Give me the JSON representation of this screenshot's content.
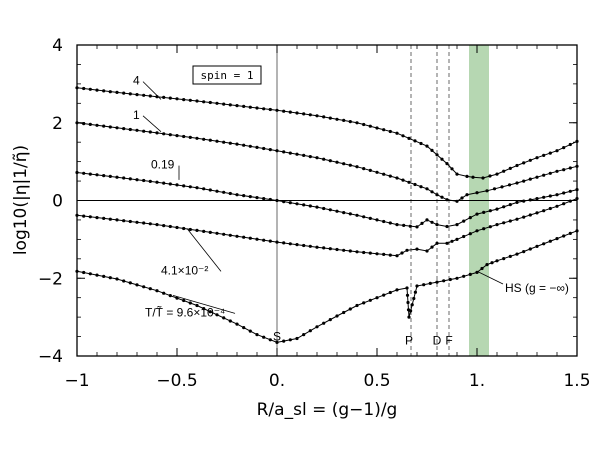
{
  "chart_data": {
    "type": "line",
    "xlabel": "R/a_sl = (g−1)/g",
    "ylabel": "log10(|η|1/η̃)",
    "xlim": [
      -1,
      1.5
    ],
    "ylim": [
      -4,
      4
    ],
    "x_ticks": [
      "−1",
      "−0.5",
      "0.",
      "0.5",
      "1.",
      "1.5"
    ],
    "y_ticks": [
      "4",
      "2",
      "0",
      "−2",
      "−4"
    ],
    "legend_box": "spin = 1",
    "series": [
      {
        "name": "4",
        "points": [
          [
            -1,
            2.9
          ],
          [
            -0.8,
            2.78
          ],
          [
            -0.6,
            2.67
          ],
          [
            -0.4,
            2.56
          ],
          [
            -0.2,
            2.44
          ],
          [
            0,
            2.32
          ],
          [
            0.2,
            2.18
          ],
          [
            0.4,
            2.0
          ],
          [
            0.6,
            1.73
          ],
          [
            0.75,
            1.4
          ],
          [
            0.85,
            0.95
          ],
          [
            0.9,
            0.68
          ],
          [
            0.95,
            0.62
          ],
          [
            0.98,
            0.6
          ],
          [
            1.03,
            0.58
          ],
          [
            1.1,
            0.68
          ],
          [
            1.2,
            0.9
          ],
          [
            1.3,
            1.1
          ],
          [
            1.4,
            1.28
          ],
          [
            1.5,
            1.52
          ]
        ]
      },
      {
        "name": "1",
        "points": [
          [
            -1,
            2.0
          ],
          [
            -0.8,
            1.87
          ],
          [
            -0.6,
            1.74
          ],
          [
            -0.4,
            1.6
          ],
          [
            -0.2,
            1.45
          ],
          [
            0,
            1.28
          ],
          [
            0.2,
            1.1
          ],
          [
            0.4,
            0.87
          ],
          [
            0.6,
            0.58
          ],
          [
            0.75,
            0.3
          ],
          [
            0.8,
            0.15
          ],
          [
            0.85,
            0.02
          ],
          [
            0.9,
            -0.02
          ],
          [
            0.95,
            0.15
          ],
          [
            1.0,
            0.2
          ],
          [
            1.05,
            0.25
          ],
          [
            1.2,
            0.45
          ],
          [
            1.3,
            0.6
          ],
          [
            1.4,
            0.75
          ],
          [
            1.5,
            0.88
          ]
        ]
      },
      {
        "name": "0.19",
        "points": [
          [
            -1,
            0.72
          ],
          [
            -0.8,
            0.6
          ],
          [
            -0.6,
            0.47
          ],
          [
            -0.4,
            0.33
          ],
          [
            -0.2,
            0.15
          ],
          [
            0,
            0.0
          ],
          [
            0.2,
            -0.17
          ],
          [
            0.4,
            -0.38
          ],
          [
            0.6,
            -0.62
          ],
          [
            0.7,
            -0.68
          ],
          [
            0.75,
            -0.5
          ],
          [
            0.8,
            -0.62
          ],
          [
            0.85,
            -0.67
          ],
          [
            0.9,
            -0.62
          ],
          [
            1.0,
            -0.35
          ],
          [
            1.1,
            -0.22
          ],
          [
            1.2,
            -0.05
          ],
          [
            1.3,
            0.05
          ],
          [
            1.4,
            0.15
          ],
          [
            1.5,
            0.28
          ]
        ]
      },
      {
        "name": "4.1×10⁻²",
        "points": [
          [
            -1,
            -0.38
          ],
          [
            -0.8,
            -0.5
          ],
          [
            -0.6,
            -0.62
          ],
          [
            -0.4,
            -0.77
          ],
          [
            -0.2,
            -0.92
          ],
          [
            0,
            -1.07
          ],
          [
            0.2,
            -1.2
          ],
          [
            0.4,
            -1.32
          ],
          [
            0.6,
            -1.42
          ],
          [
            0.65,
            -1.28
          ],
          [
            0.7,
            -1.25
          ],
          [
            0.75,
            -1.3
          ],
          [
            0.8,
            -1.1
          ],
          [
            0.85,
            -1.1
          ],
          [
            0.9,
            -1.0
          ],
          [
            1.0,
            -0.78
          ],
          [
            1.1,
            -0.62
          ],
          [
            1.2,
            -0.48
          ],
          [
            1.3,
            -0.32
          ],
          [
            1.4,
            -0.15
          ],
          [
            1.5,
            0.05
          ]
        ]
      },
      {
        "name": "T/T̃ = 9.6×10⁻⁴",
        "points": [
          [
            -1,
            -1.82
          ],
          [
            -0.8,
            -2.02
          ],
          [
            -0.6,
            -2.32
          ],
          [
            -0.4,
            -2.7
          ],
          [
            -0.2,
            -3.18
          ],
          [
            -0.1,
            -3.45
          ],
          [
            0,
            -3.65
          ],
          [
            0.1,
            -3.55
          ],
          [
            0.2,
            -3.25
          ],
          [
            0.3,
            -2.97
          ],
          [
            0.4,
            -2.7
          ],
          [
            0.5,
            -2.5
          ],
          [
            0.6,
            -2.3
          ],
          [
            0.65,
            -2.25
          ],
          [
            0.66,
            -3.0
          ],
          [
            0.7,
            -2.2
          ],
          [
            0.8,
            -2.1
          ],
          [
            0.9,
            -2.0
          ],
          [
            1.0,
            -1.85
          ],
          [
            1.05,
            -1.65
          ],
          [
            1.1,
            -1.55
          ],
          [
            1.2,
            -1.38
          ],
          [
            1.3,
            -1.18
          ],
          [
            1.4,
            -0.98
          ],
          [
            1.5,
            -0.78
          ]
        ]
      }
    ],
    "series_labels": [
      {
        "text": "4",
        "x": -0.72,
        "y": 2.98
      },
      {
        "text": "1",
        "x": -0.72,
        "y": 2.1
      },
      {
        "text": "0.19",
        "x": -0.63,
        "y": 0.82
      },
      {
        "text": "4.1×10⁻²",
        "x": -0.58,
        "y": -1.9
      },
      {
        "text": "T/T̃ = 9.6×10⁻⁴",
        "x": -0.66,
        "y": -2.98
      }
    ],
    "vertical_lines": [
      {
        "x": 0.0,
        "style": "solid"
      },
      {
        "x": 0.67,
        "style": "dashed"
      },
      {
        "x": 0.8,
        "style": "dashed"
      },
      {
        "x": 0.86,
        "style": "dashed"
      }
    ],
    "point_labels": [
      {
        "text": "S",
        "x": 0.0,
        "y": -3.6
      },
      {
        "text": "P",
        "x": 0.66,
        "y": -3.7
      },
      {
        "text": "D",
        "x": 0.8,
        "y": -3.7
      },
      {
        "text": "F",
        "x": 0.86,
        "y": -3.7
      }
    ],
    "hs_annotation": {
      "text": "HS (g = −∞)",
      "x": 1.14,
      "y": -2.25
    },
    "shaded_band": {
      "x_from": 0.96,
      "x_to": 1.06,
      "color": "#a9d0a4"
    },
    "horizontal_line": {
      "y": 0
    }
  }
}
